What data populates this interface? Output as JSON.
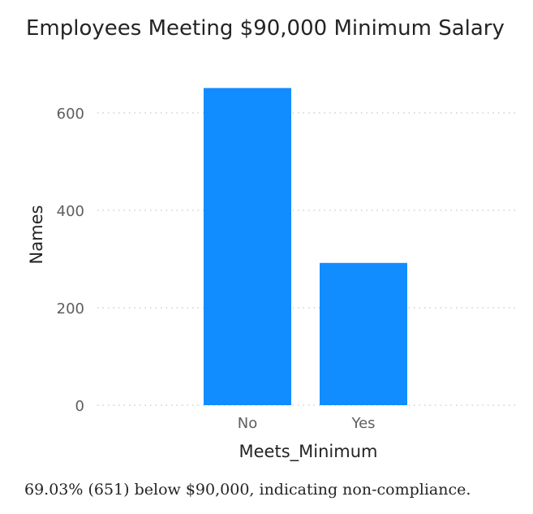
{
  "chart_data": {
    "type": "bar",
    "title": "Employees Meeting $90,000 Minimum Salary",
    "xlabel": "Meets_Minimum",
    "ylabel": "Names",
    "categories": [
      "No",
      "Yes"
    ],
    "values": [
      651,
      292
    ],
    "ylim": [
      0,
      650
    ],
    "yticks": [
      0,
      200,
      400,
      600
    ],
    "grid": true,
    "bar_color": "#118DFF"
  },
  "caption": "69.03% (651) below $90,000, indicating non-compliance."
}
